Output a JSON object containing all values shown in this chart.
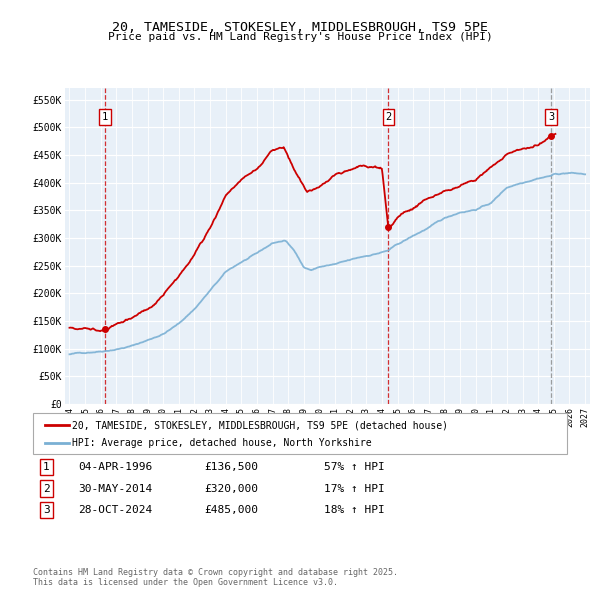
{
  "title": "20, TAMESIDE, STOKESLEY, MIDDLESBROUGH, TS9 5PE",
  "subtitle": "Price paid vs. HM Land Registry's House Price Index (HPI)",
  "ylim": [
    0,
    570000
  ],
  "yticks": [
    0,
    50000,
    100000,
    150000,
    200000,
    250000,
    300000,
    350000,
    400000,
    450000,
    500000,
    550000
  ],
  "ytick_labels": [
    "£0",
    "£50K",
    "£100K",
    "£150K",
    "£200K",
    "£250K",
    "£300K",
    "£350K",
    "£400K",
    "£450K",
    "£500K",
    "£550K"
  ],
  "xlim_start": 1993.7,
  "xlim_end": 2027.3,
  "sale_dates": [
    1996.26,
    2014.41,
    2024.83
  ],
  "sale_prices": [
    136500,
    320000,
    485000
  ],
  "sale_labels": [
    "1",
    "2",
    "3"
  ],
  "sale_line_colors": [
    "#cc0000",
    "#cc0000",
    "#888888"
  ],
  "legend_line1": "20, TAMESIDE, STOKESLEY, MIDDLESBROUGH, TS9 5PE (detached house)",
  "legend_line2": "HPI: Average price, detached house, North Yorkshire",
  "table_rows": [
    [
      "1",
      "04-APR-1996",
      "£136,500",
      "57% ↑ HPI"
    ],
    [
      "2",
      "30-MAY-2014",
      "£320,000",
      "17% ↑ HPI"
    ],
    [
      "3",
      "28-OCT-2024",
      "£485,000",
      "18% ↑ HPI"
    ]
  ],
  "footer": "Contains HM Land Registry data © Crown copyright and database right 2025.\nThis data is licensed under the Open Government Licence v3.0.",
  "line_color_red": "#cc0000",
  "line_color_blue": "#7ab0d4",
  "background_color": "#e8f0f8",
  "hpi_key_t": [
    1994.0,
    1995,
    1996,
    1997,
    1998,
    1999,
    2000,
    2001,
    2002,
    2003,
    2004,
    2005,
    2006,
    2007,
    2007.8,
    2008.5,
    2009.0,
    2009.5,
    2010,
    2011,
    2012,
    2013,
    2014,
    2014.41,
    2015,
    2016,
    2017,
    2018,
    2019,
    2020,
    2021,
    2022,
    2023,
    2024,
    2024.83,
    2025,
    2026,
    2027
  ],
  "hpi_key_v": [
    90000,
    93000,
    97000,
    102000,
    108000,
    118000,
    130000,
    148000,
    175000,
    208000,
    240000,
    258000,
    272000,
    290000,
    295000,
    272000,
    247000,
    242000,
    248000,
    252000,
    258000,
    265000,
    272000,
    275000,
    285000,
    300000,
    315000,
    330000,
    342000,
    348000,
    360000,
    388000,
    398000,
    408000,
    413000,
    415000,
    418000,
    415000
  ],
  "red_key_t": [
    1994.0,
    1995,
    1996.0,
    1996.26,
    1997,
    1998,
    1999,
    2000,
    2001,
    2002,
    2003,
    2004,
    2005,
    2006,
    2007,
    2007.7,
    2008.3,
    2009.2,
    2009.8,
    2010.5,
    2011,
    2012,
    2012.5,
    2013,
    2013.5,
    2014.0,
    2014.41,
    2015,
    2016,
    2017,
    2018,
    2019,
    2020,
    2021,
    2022,
    2023,
    2024.0,
    2024.83,
    2025.0
  ],
  "red_key_v": [
    138000,
    138000,
    137000,
    136500,
    145000,
    157000,
    172000,
    193000,
    228000,
    270000,
    320000,
    380000,
    408000,
    425000,
    460000,
    465000,
    428000,
    382000,
    388000,
    402000,
    415000,
    425000,
    430000,
    430000,
    428000,
    425000,
    320000,
    340000,
    358000,
    375000,
    385000,
    395000,
    405000,
    430000,
    455000,
    462000,
    470000,
    485000,
    488000
  ]
}
